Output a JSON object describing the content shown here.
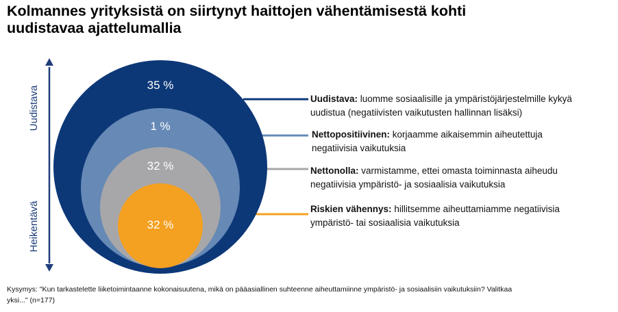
{
  "title": {
    "line1": "Kolmannes yrityksistä on siirtynyt haittojen vähentämisestä kohti",
    "line2": "uudistavaa ajattelumallia"
  },
  "axis": {
    "top_label": "Uudistava",
    "bottom_label": "Heikentävä"
  },
  "chart_data": {
    "type": "nested-circles",
    "title": "Kolmannes yrityksistä on siirtynyt haittojen vähentämisestä kohti uudistavaa ajattelumallia",
    "unit": "%",
    "categories": [
      {
        "name": "Uudistava",
        "value": 35,
        "label": "35 %",
        "color": "#0d3878",
        "desc_bold": "Uudistava:",
        "desc_line1": "luomme sosiaalisille ja ympäristöjärjestelmille kykyä",
        "desc_line2": "uudistua (negatiivisten vaikutusten hallinnan lisäksi)"
      },
      {
        "name": "Nettopositiivinen",
        "value": 1,
        "label": "1 %",
        "color": "#6689b6",
        "desc_bold": "Nettopositiivinen:",
        "desc_line1": "korjaamme aikaisemmin aiheutettuja",
        "desc_line2": "negatiivisia vaikutuksia"
      },
      {
        "name": "Nettonolla",
        "value": 32,
        "label": "32 %",
        "color": "#a7a7a9",
        "desc_bold": "Nettonolla:",
        "desc_line1": "varmistamme, ettei omasta toiminnasta aiheudu",
        "desc_line2": "negatiivisia ympäristö- ja sosiaalisia vaikutuksia"
      },
      {
        "name": "Riskien vähennys",
        "value": 32,
        "label": "32 %",
        "color": "#f4a020",
        "desc_bold": "Riskien vähennys:",
        "desc_line1": "hillitsemme aiheuttamiamme negatiivisia",
        "desc_line2": "ympäristö- tai sosiaalisia vaikutuksia"
      }
    ],
    "axis_top": "Uudistava",
    "axis_bottom": "Heikentävä"
  },
  "footnote": {
    "line1": "Kysymys: \"Kun tarkastelette liiketoimintaanne kokonaisuutena, mikä on pääasiallinen suhteenne aiheuttamiinne ympäristö- ja sosiaalisiin vaikutuksiin? Valitkaa",
    "line2": "yksi...\" (n=177)"
  }
}
